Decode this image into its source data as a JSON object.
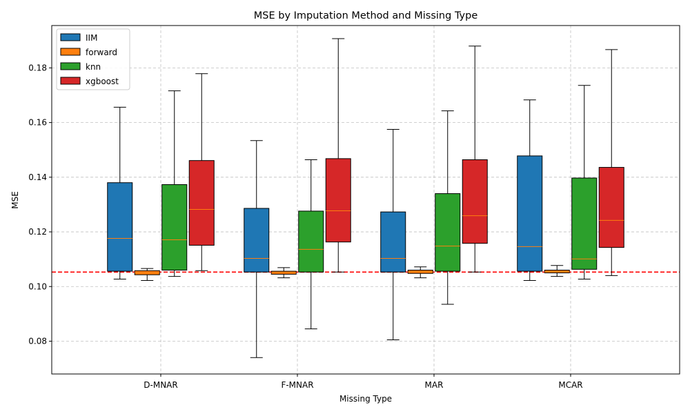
{
  "chart_data": {
    "type": "box",
    "title": "MSE by Imputation Method and Missing Type",
    "xlabel": "Missing Type",
    "ylabel": "MSE",
    "categories": [
      "D-MNAR",
      "F-MNAR",
      "MAR",
      "MCAR"
    ],
    "ylim": [
      0.068,
      0.1955
    ],
    "yticks": [
      0.08,
      0.1,
      0.12,
      0.14,
      0.16,
      0.18
    ],
    "ytick_labels": [
      "0.08",
      "0.10",
      "0.12",
      "0.14",
      "0.16",
      "0.18"
    ],
    "grid": true,
    "legend_position": "top-left",
    "reference_line": {
      "y": 0.1053,
      "color": "#ff0000",
      "style": "dashed"
    },
    "series": [
      {
        "name": "IIM",
        "color": "#1f77b4",
        "boxes": [
          {
            "whislo": 0.1027,
            "q1": 0.1056,
            "med": 0.1176,
            "q3": 0.138,
            "whishi": 0.1656
          },
          {
            "whislo": 0.074,
            "q1": 0.1053,
            "med": 0.1103,
            "q3": 0.1286,
            "whishi": 0.1534
          },
          {
            "whislo": 0.0805,
            "q1": 0.1053,
            "med": 0.1103,
            "q3": 0.1273,
            "whishi": 0.1575
          },
          {
            "whislo": 0.1022,
            "q1": 0.1056,
            "med": 0.1146,
            "q3": 0.1478,
            "whishi": 0.1683
          }
        ]
      },
      {
        "name": "forward",
        "color": "#ff7f0e",
        "boxes": [
          {
            "whislo": 0.1022,
            "q1": 0.1043,
            "med": 0.1053,
            "q3": 0.1058,
            "whishi": 0.1066
          },
          {
            "whislo": 0.1032,
            "q1": 0.1045,
            "med": 0.105,
            "q3": 0.1056,
            "whishi": 0.1069
          },
          {
            "whislo": 0.1032,
            "q1": 0.1048,
            "med": 0.1053,
            "q3": 0.106,
            "whishi": 0.1072
          },
          {
            "whislo": 0.1037,
            "q1": 0.105,
            "med": 0.1053,
            "q3": 0.106,
            "whishi": 0.1077
          }
        ]
      },
      {
        "name": "knn",
        "color": "#2ca02c",
        "boxes": [
          {
            "whislo": 0.1037,
            "q1": 0.106,
            "med": 0.1171,
            "q3": 0.1373,
            "whishi": 0.1716
          },
          {
            "whislo": 0.0845,
            "q1": 0.1053,
            "med": 0.1136,
            "q3": 0.1276,
            "whishi": 0.1464
          },
          {
            "whislo": 0.0935,
            "q1": 0.1056,
            "med": 0.1148,
            "q3": 0.134,
            "whishi": 0.1643
          },
          {
            "whislo": 0.1027,
            "q1": 0.1063,
            "med": 0.1101,
            "q3": 0.1397,
            "whishi": 0.1736
          }
        ]
      },
      {
        "name": "xgboost",
        "color": "#d62728",
        "boxes": [
          {
            "whislo": 0.1058,
            "q1": 0.1151,
            "med": 0.1282,
            "q3": 0.1461,
            "whishi": 0.1779
          },
          {
            "whislo": 0.1053,
            "q1": 0.1163,
            "med": 0.1277,
            "q3": 0.1468,
            "whishi": 0.1907
          },
          {
            "whislo": 0.1053,
            "q1": 0.1158,
            "med": 0.1259,
            "q3": 0.1464,
            "whishi": 0.188
          },
          {
            "whislo": 0.104,
            "q1": 0.1143,
            "med": 0.1242,
            "q3": 0.1436,
            "whishi": 0.1867
          }
        ]
      }
    ]
  }
}
